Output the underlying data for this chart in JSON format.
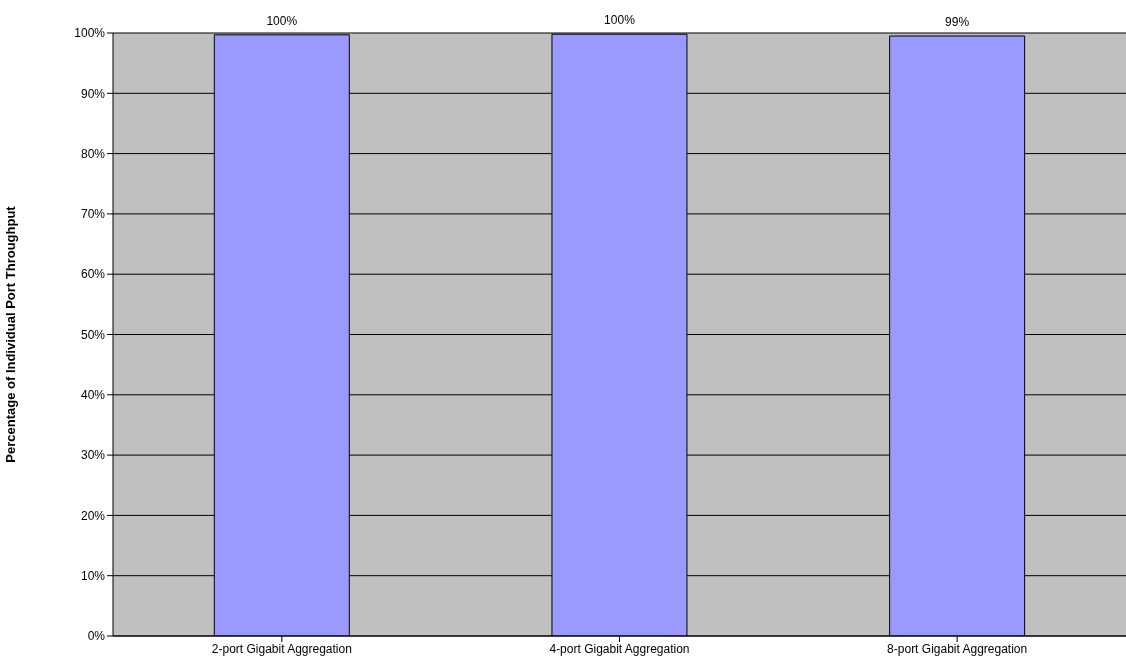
{
  "chart_data": {
    "type": "bar",
    "ylabel": "Percentage of Individual Port Throughput",
    "categories": [
      "2-port Gigabit Aggregation",
      "4-port Gigabit Aggregation",
      "8-port Gigabit Aggregation"
    ],
    "values": [
      99.7,
      99.8,
      99.5
    ],
    "value_labels": [
      "100%",
      "100%",
      "99%"
    ],
    "color": "#9999ff",
    "ylim": [
      0,
      100
    ],
    "yticks": [
      {
        "value": 0,
        "label": "0%"
      },
      {
        "value": 10,
        "label": "10%"
      },
      {
        "value": 20,
        "label": "20%"
      },
      {
        "value": 30,
        "label": "30%"
      },
      {
        "value": 40,
        "label": "40%"
      },
      {
        "value": 50,
        "label": "50%"
      },
      {
        "value": 60,
        "label": "60%"
      },
      {
        "value": 70,
        "label": "70%"
      },
      {
        "value": 80,
        "label": "80%"
      },
      {
        "value": 90,
        "label": "90%"
      },
      {
        "value": 100,
        "label": "100%"
      }
    ],
    "grid": "y",
    "legend": false
  }
}
